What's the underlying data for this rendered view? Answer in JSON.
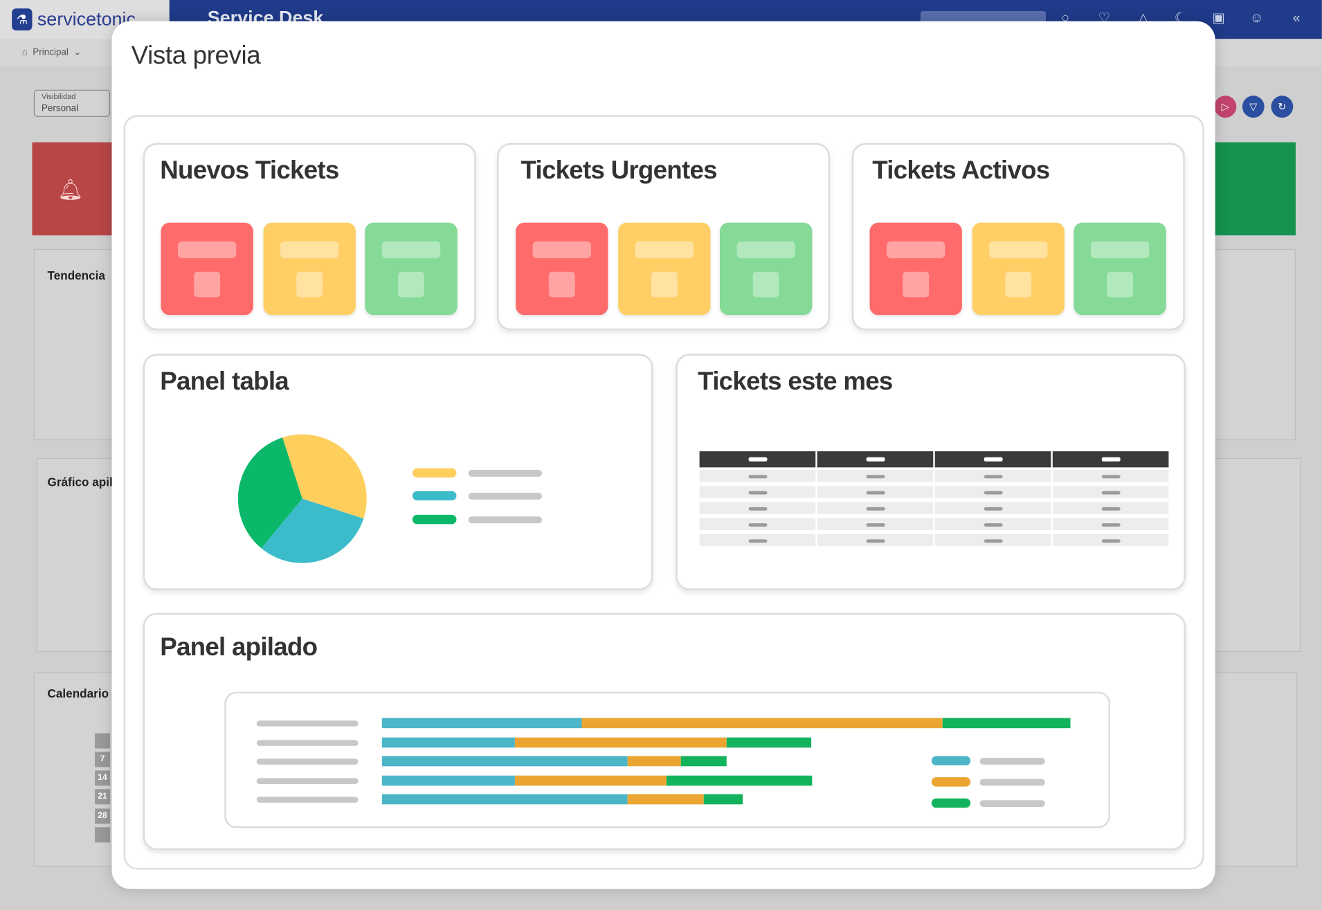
{
  "background_app": {
    "logo_text": "servicetonic",
    "title": "Service Desk",
    "breadcrumb": "Principal",
    "visibility": {
      "label": "Visibilidad",
      "value": "Personal"
    },
    "panels": [
      "Tendencia",
      "Gráfico apil",
      "Calendario"
    ],
    "calendar_days": [
      "7",
      "14",
      "21",
      "28"
    ]
  },
  "modal": {
    "title": "Vista previa",
    "widgets": {
      "nuevos": {
        "title": "Nuevos Tickets"
      },
      "urgentes": {
        "title": "Tickets Urgentes"
      },
      "activos": {
        "title": "Tickets Activos"
      },
      "tabla": {
        "title": "Panel tabla"
      },
      "mes": {
        "title": "Tickets este mes"
      },
      "apilado": {
        "title": "Panel apilado"
      }
    }
  },
  "colors": {
    "red": "#ff6b6b",
    "amber": "#ffcf66",
    "green": "#84da96",
    "pie_yellow": "#ffcf5e",
    "pie_teal": "#3cbccb",
    "pie_green": "#0bb86a",
    "bar_teal": "#4cb5c7",
    "bar_orange": "#eba532",
    "bar_green": "#12b35c",
    "navy": "#1f3b8a"
  },
  "chart_data": [
    {
      "type": "pie",
      "slices": [
        {
          "color": "#ffcf5e",
          "value": 0.35
        },
        {
          "color": "#3cbccb",
          "value": 0.31
        },
        {
          "color": "#0bb86a",
          "value": 0.34
        }
      ]
    },
    {
      "type": "bar",
      "orientation": "horizontal",
      "stacked": true,
      "series": [
        {
          "color": "#4cb5c7",
          "values": [
            236,
            157,
            290,
            157,
            290
          ]
        },
        {
          "color": "#eba532",
          "values": [
            426,
            250,
            63,
            179,
            90
          ]
        },
        {
          "color": "#12b35c",
          "values": [
            151,
            100,
            54,
            172,
            46
          ]
        }
      ]
    }
  ]
}
